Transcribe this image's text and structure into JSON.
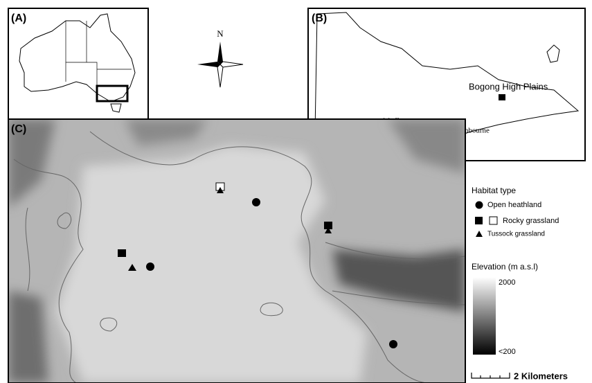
{
  "panels": {
    "a": {
      "label": "(A)"
    },
    "b": {
      "label": "(B)",
      "places": [
        "Bogong High Plains",
        "Melbourne",
        "Cranbourne"
      ]
    },
    "c": {
      "label": "(C)"
    }
  },
  "compass": {
    "north": "N"
  },
  "legend": {
    "habitat": {
      "title": "Habitat type",
      "items": [
        "Open heathland",
        "Rocky grassland",
        "Tussock grassland"
      ]
    },
    "elevation": {
      "title": "Elevation (m a.s.l)",
      "max": "2000",
      "min": "<200"
    }
  },
  "scale_bar": {
    "label": "2 Kilometers"
  }
}
